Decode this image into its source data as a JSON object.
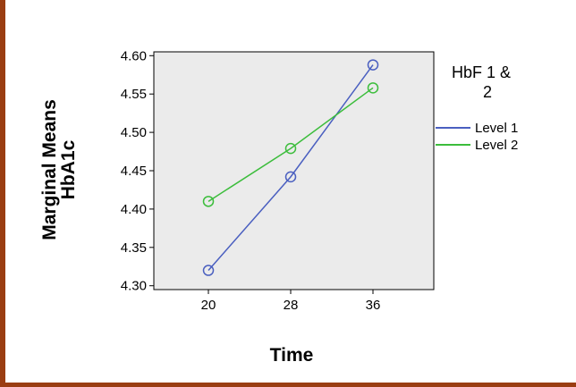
{
  "chart_data": {
    "type": "line",
    "x": [
      20,
      28,
      36
    ],
    "x_tick_labels": [
      "20",
      "28",
      "36"
    ],
    "series": [
      {
        "name": "Level 1",
        "values": [
          4.32,
          4.442,
          4.588
        ],
        "color": "#4a5fc0"
      },
      {
        "name": "Level 2",
        "values": [
          4.41,
          4.479,
          4.558
        ],
        "color": "#3cbd3c"
      }
    ],
    "xlabel": "Time",
    "ylabel_lines": [
      "Marginal Means",
      "HbA1c"
    ],
    "ylim": [
      4.295,
      4.605
    ],
    "y_ticks": [
      4.3,
      4.35,
      4.4,
      4.45,
      4.5,
      4.55,
      4.6
    ],
    "y_tick_labels": [
      "4.30",
      "4.35",
      "4.40",
      "4.45",
      "4.50",
      "4.55",
      "4.60"
    ],
    "legend_title_lines": [
      "HbF 1 &",
      "2"
    ],
    "legend_position": "right",
    "plot_background": "#ebebeb",
    "marker": "open-circle",
    "grid": false
  }
}
